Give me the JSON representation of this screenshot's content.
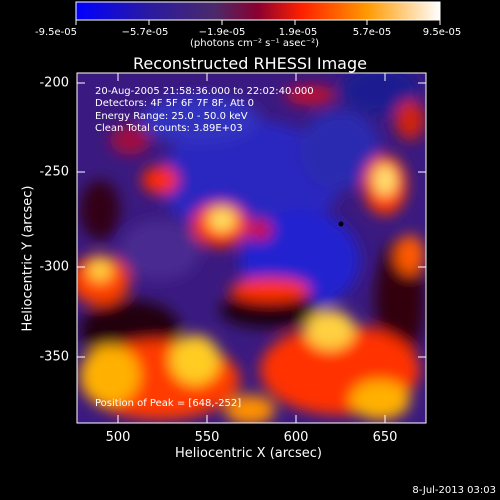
{
  "colorbar": {
    "ticks": [
      "-9.5e-05",
      "−5.7e-05",
      "−1.9e-05",
      "1.9e-05",
      "5.7e-05",
      "9.5e-05"
    ],
    "units": "(photons cm⁻² s⁻¹ asec⁻²)"
  },
  "title": "Reconstructed RHESSI Image",
  "info": {
    "time": "20-Aug-2005 21:58:36.000 to 22:02:40.000",
    "detectors": "Detectors: 4F 5F 6F 7F 8F, Att 0",
    "energy": "Energy Range: 25.0 - 50.0 keV",
    "clean": "Clean    Total counts: 3.89E+03",
    "peak": "Position of Peak = [648,-252]"
  },
  "axes": {
    "xlabel": "Heliocentric X (arcsec)",
    "ylabel": "Heliocentric Y (arcsec)",
    "xticks": [
      "500",
      "550",
      "600",
      "650"
    ],
    "yticks": [
      "-200",
      "-250",
      "-300",
      "-350"
    ]
  },
  "timestamp": "8-Jul-2013 03:03",
  "colors": {
    "min": "#1a1aff",
    "mid": "#5a2a8a",
    "hot": "#ff2a00",
    "max": "#ffffc0"
  }
}
